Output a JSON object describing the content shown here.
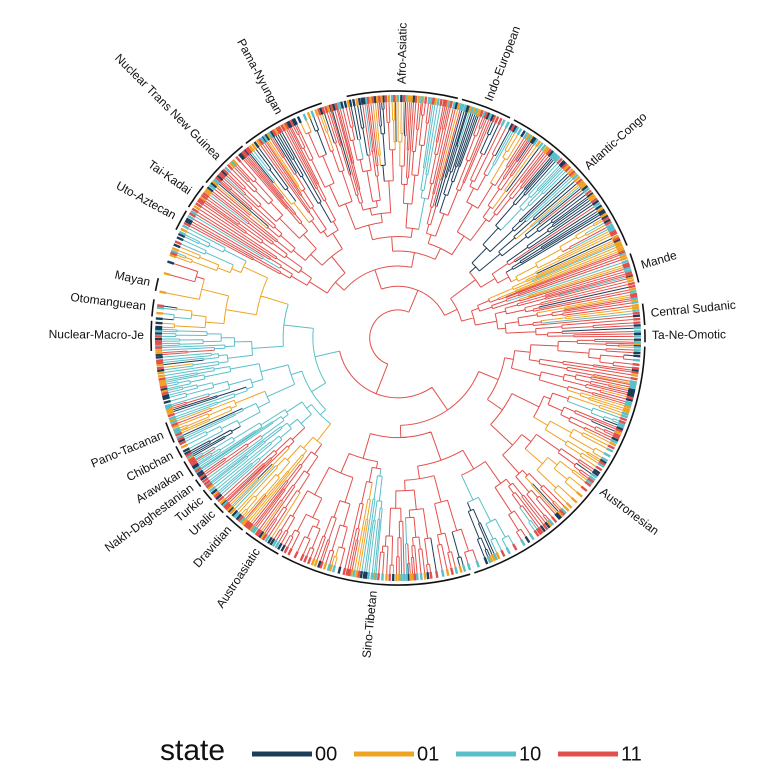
{
  "families": [
    "Afro-Asiatic",
    "Indo-European",
    "Atlantic-Congo",
    "Mande",
    "Central Sudanic",
    "Ta-Ne-Omotic",
    "Austronesian",
    "Sino-Tibetan",
    "Austroasiatic",
    "Dravidian",
    "Uralic",
    "Turkic",
    "Nakh-Daghestanian",
    "Arawakan",
    "Chibchan",
    "Pano-Tacanan",
    "Nuclear-Macro-Je",
    "Otomanguean",
    "Mayan",
    "Uto-Aztecan",
    "Tai-Kadai",
    "Nuclear Trans New Guinea",
    "Pama-Nyungan"
  ],
  "legend": {
    "title": "state",
    "items": [
      {
        "label": "00",
        "color": "#1c3d5a"
      },
      {
        "label": "01",
        "color": "#f0a323"
      },
      {
        "label": "10",
        "color": "#5bbfc9"
      },
      {
        "label": "11",
        "color": "#e2504c"
      }
    ]
  }
}
